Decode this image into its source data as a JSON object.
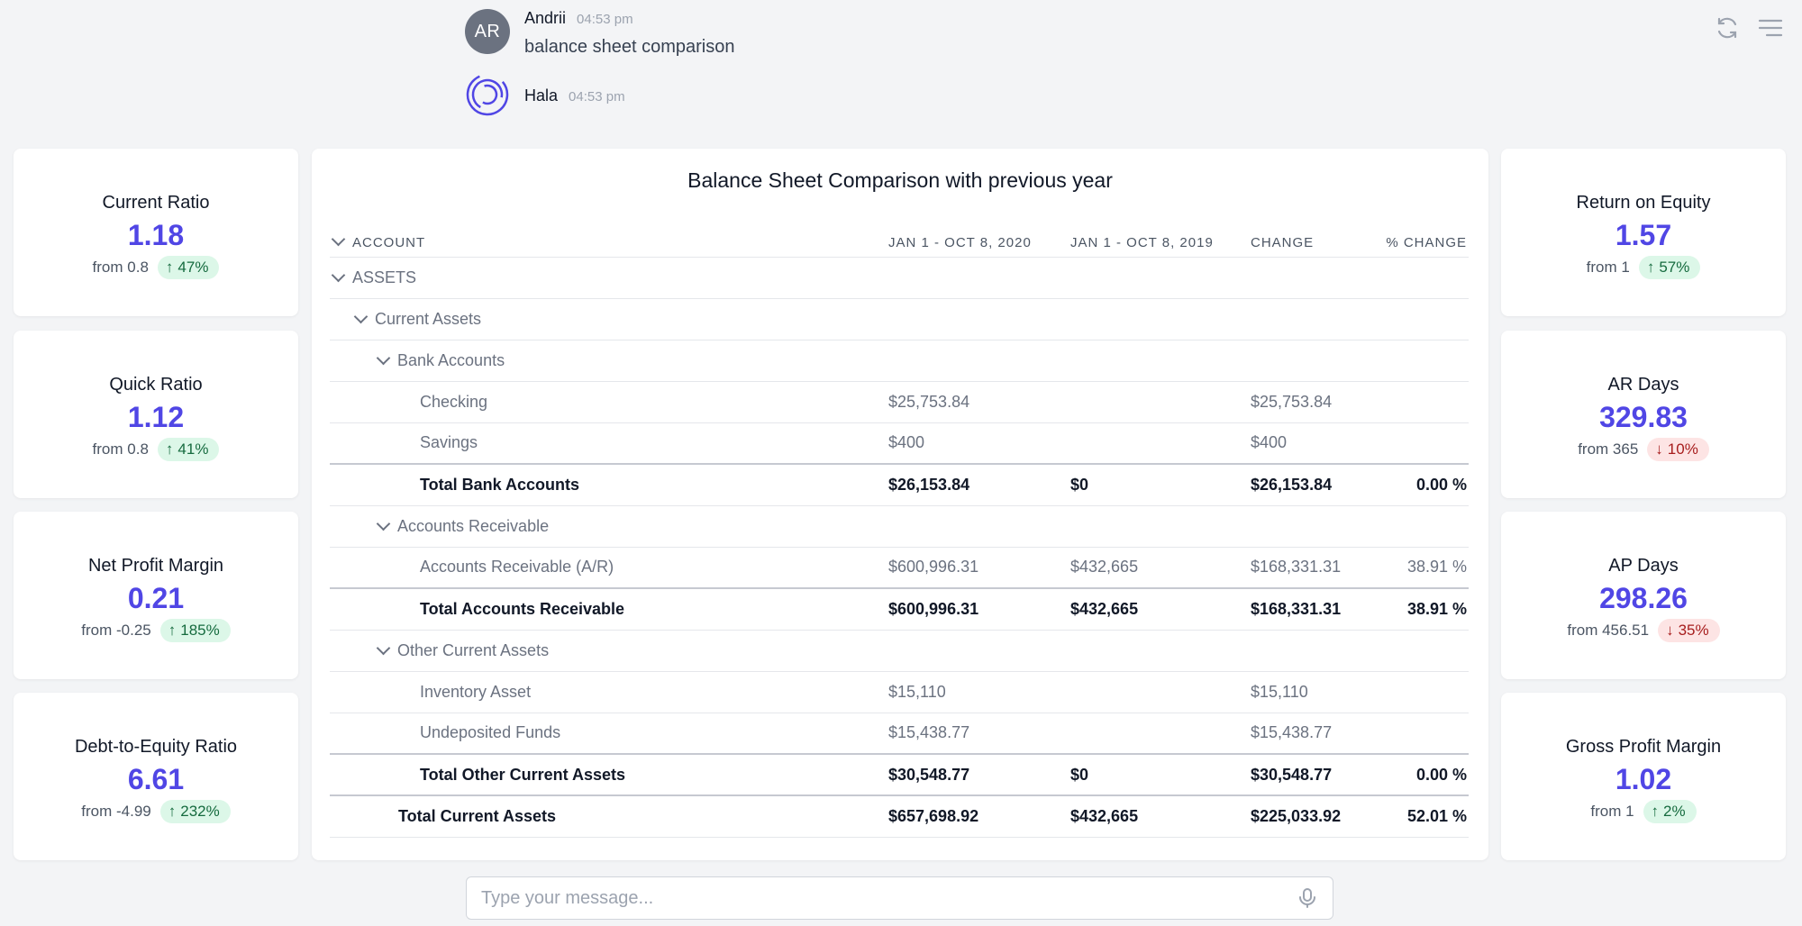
{
  "chat": {
    "messages": [
      {
        "avatar_initials": "AR",
        "name": "Andrii",
        "time": "04:53 pm",
        "text": "balance sheet comparison"
      },
      {
        "name": "Hala",
        "time": "04:53 pm"
      }
    ]
  },
  "top_icons": [
    "refresh-icon",
    "menu-icon"
  ],
  "kpis_left": [
    {
      "title": "Current Ratio",
      "value": "1.18",
      "from": "from 0.8",
      "change": "47%",
      "direction": "up"
    },
    {
      "title": "Quick Ratio",
      "value": "1.12",
      "from": "from 0.8",
      "change": "41%",
      "direction": "up"
    },
    {
      "title": "Net Profit Margin",
      "value": "0.21",
      "from": "from -0.25",
      "change": "185%",
      "direction": "up"
    },
    {
      "title": "Debt-to-Equity Ratio",
      "value": "6.61",
      "from": "from -4.99",
      "change": "232%",
      "direction": "up"
    }
  ],
  "kpis_right": [
    {
      "title": "Return on Equity",
      "value": "1.57",
      "from": "from 1",
      "change": "57%",
      "direction": "up"
    },
    {
      "title": "AR Days",
      "value": "329.83",
      "from": "from 365",
      "change": "10%",
      "direction": "down"
    },
    {
      "title": "AP Days",
      "value": "298.26",
      "from": "from 456.51",
      "change": "35%",
      "direction": "down"
    },
    {
      "title": "Gross Profit Margin",
      "value": "1.02",
      "from": "from 1",
      "change": "2%",
      "direction": "up"
    }
  ],
  "report": {
    "title": "Balance Sheet Comparison with previous year",
    "headers": {
      "account": "ACCOUNT",
      "period1": "JAN 1 - OCT 8, 2020",
      "period2": "JAN 1 - OCT 8, 2019",
      "change": "CHANGE",
      "pct_change": "% CHANGE"
    },
    "rows": [
      {
        "label": "ASSETS",
        "type": "group",
        "level": 0
      },
      {
        "label": "Current Assets",
        "type": "group",
        "level": 1
      },
      {
        "label": "Bank Accounts",
        "type": "group",
        "level": 2
      },
      {
        "label": "Checking",
        "type": "item",
        "v1": "$25,753.84",
        "v2": "",
        "change": "$25,753.84",
        "pct": ""
      },
      {
        "label": "Savings",
        "type": "item",
        "v1": "$400",
        "v2": "",
        "change": "$400",
        "pct": ""
      },
      {
        "label": "Total Bank Accounts",
        "type": "total",
        "level": 3,
        "v1": "$26,153.84",
        "v2": "$0",
        "change": "$26,153.84",
        "pct": "0.00 %"
      },
      {
        "label": "Accounts Receivable",
        "type": "group",
        "level": 2
      },
      {
        "label": "Accounts Receivable (A/R)",
        "type": "item",
        "v1": "$600,996.31",
        "v2": "$432,665",
        "change": "$168,331.31",
        "pct": "38.91 %"
      },
      {
        "label": "Total Accounts Receivable",
        "type": "total",
        "level": 3,
        "v1": "$600,996.31",
        "v2": "$432,665",
        "change": "$168,331.31",
        "pct": "38.91 %"
      },
      {
        "label": "Other Current Assets",
        "type": "group",
        "level": 2
      },
      {
        "label": "Inventory Asset",
        "type": "item",
        "v1": "$15,110",
        "v2": "",
        "change": "$15,110",
        "pct": ""
      },
      {
        "label": "Undeposited Funds",
        "type": "item",
        "v1": "$15,438.77",
        "v2": "",
        "change": "$15,438.77",
        "pct": ""
      },
      {
        "label": "Total Other Current Assets",
        "type": "total",
        "level": 3,
        "v1": "$30,548.77",
        "v2": "$0",
        "change": "$30,548.77",
        "pct": "0.00 %"
      },
      {
        "label": "Total Current Assets",
        "type": "total",
        "level": 2,
        "v1": "$657,698.92",
        "v2": "$432,665",
        "change": "$225,033.92",
        "pct": "52.01 %"
      }
    ]
  },
  "input": {
    "placeholder": "Type your message..."
  },
  "colors": {
    "accent": "#5046e5",
    "up_bg": "#dcf7e8",
    "down_bg": "#fde4e4"
  }
}
